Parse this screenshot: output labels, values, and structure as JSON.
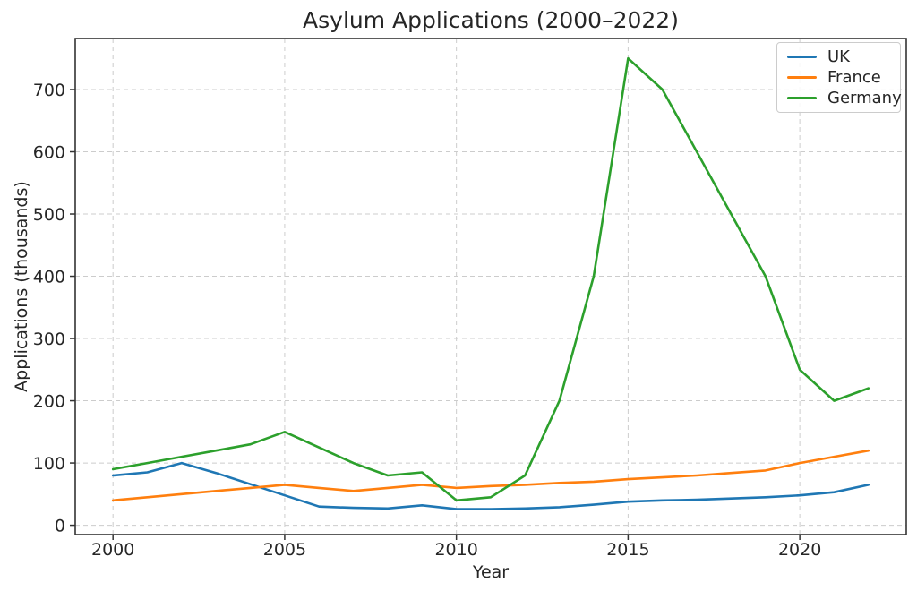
{
  "chart_data": {
    "type": "line",
    "title": "Asylum Applications (2000–2022)",
    "xlabel": "Year",
    "ylabel": "Applications (thousands)",
    "x": [
      2000,
      2001,
      2002,
      2003,
      2004,
      2005,
      2006,
      2007,
      2008,
      2009,
      2010,
      2011,
      2012,
      2013,
      2014,
      2015,
      2016,
      2017,
      2018,
      2019,
      2020,
      2021,
      2022
    ],
    "series": [
      {
        "name": "UK",
        "color": "#1f77b4",
        "values": [
          80,
          85,
          100,
          84,
          66,
          48,
          30,
          28,
          27,
          32,
          26,
          26,
          27,
          29,
          33,
          38,
          40,
          41,
          43,
          45,
          48,
          53,
          65
        ]
      },
      {
        "name": "France",
        "color": "#ff7f0e",
        "values": [
          40,
          45,
          50,
          55,
          60,
          65,
          60,
          55,
          60,
          65,
          60,
          63,
          65,
          68,
          70,
          74,
          77,
          80,
          84,
          88,
          100,
          110,
          120
        ]
      },
      {
        "name": "Germany",
        "color": "#2ca02c",
        "values": [
          90,
          100,
          110,
          120,
          130,
          150,
          125,
          100,
          80,
          85,
          40,
          45,
          80,
          200,
          400,
          750,
          700,
          600,
          500,
          400,
          250,
          200,
          220
        ]
      }
    ],
    "xticks": [
      2000,
      2005,
      2010,
      2015,
      2020
    ],
    "yticks": [
      0,
      100,
      200,
      300,
      400,
      500,
      600,
      700
    ],
    "xlim": [
      1998.9,
      2023.1
    ],
    "ylim": [
      -15,
      782
    ],
    "grid": true,
    "grid_style": "dashed",
    "grid_color": "#cccccc",
    "axis_color": "#333333",
    "legend_position": "upper right"
  }
}
